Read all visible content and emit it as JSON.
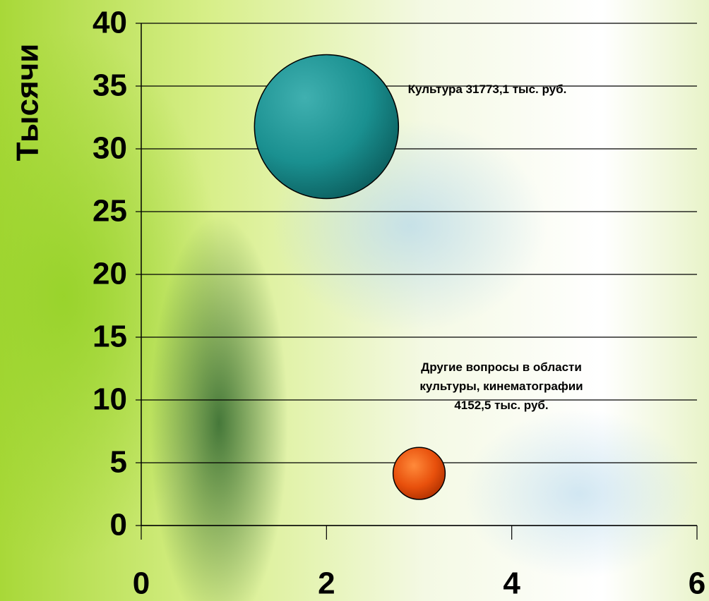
{
  "chart_data": {
    "type": "bubble",
    "y_axis_label": "Тысячи",
    "series": [
      {
        "name": "Культура",
        "color": "#1a9090",
        "x": [
          2
        ],
        "values": [
          31.7731
        ],
        "value_labels": [
          "Культура 31773,1 тыс. руб."
        ]
      },
      {
        "name": "Другие вопросы в области культуры, кинематографии",
        "color": "#e8500c",
        "x": [
          3
        ],
        "values": [
          4.1525
        ],
        "value_labels": [
          "Другие вопросы в области культуры, кинематографии 4152,5 тыс. руб."
        ]
      }
    ],
    "xlim": [
      0,
      6
    ],
    "xticks": [
      0,
      2,
      4,
      6
    ],
    "ylim": [
      0,
      40
    ],
    "yticks": [
      0,
      5,
      10,
      15,
      20,
      25,
      30,
      35,
      40
    ],
    "grid": true
  }
}
